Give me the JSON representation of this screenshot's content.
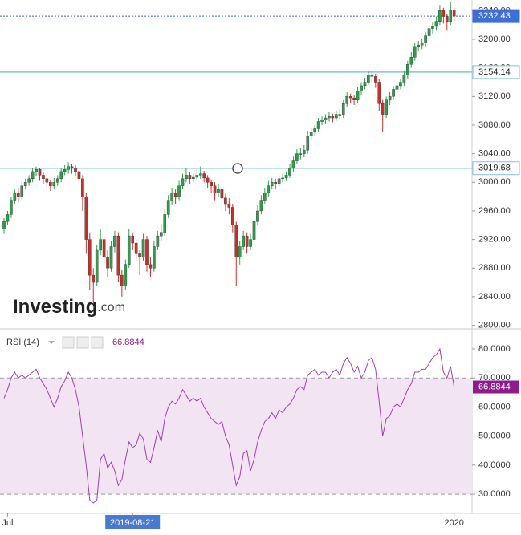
{
  "chart_data": {
    "type": "candlestick",
    "logo": "Investing",
    "logo_suffix": ".com",
    "ylim": [
      2795,
      3255
    ],
    "yticks": [
      {
        "value": 2800,
        "label": "2800.00"
      },
      {
        "value": 2840,
        "label": "2840.00"
      },
      {
        "value": 2880,
        "label": "2880.00"
      },
      {
        "value": 2920,
        "label": "2920.00"
      },
      {
        "value": 2960,
        "label": "2960.00"
      },
      {
        "value": 3000,
        "label": "3000.00"
      },
      {
        "value": 3040,
        "label": "3040.00"
      },
      {
        "value": 3080,
        "label": "3080.00"
      },
      {
        "value": 3120,
        "label": "3120.00"
      },
      {
        "value": 3160,
        "label": "3160.00"
      },
      {
        "value": 3200,
        "label": "3200.00"
      },
      {
        "value": 3240,
        "label": "3240.00"
      }
    ],
    "price_lines": [
      3232.43,
      3154.14,
      3019.68
    ],
    "up_color": "#2f9e4a",
    "down_color": "#c9302c",
    "x_labels": [
      {
        "index": 1,
        "label": "Jul"
      },
      {
        "index": 36,
        "label": "2019-08-21"
      },
      {
        "index": 126,
        "label": "2020"
      }
    ],
    "ohlc": [
      [
        2935,
        2950,
        2928,
        2945
      ],
      [
        2945,
        2960,
        2940,
        2955
      ],
      [
        2955,
        2980,
        2950,
        2975
      ],
      [
        2975,
        2990,
        2970,
        2985
      ],
      [
        2985,
        2992,
        2972,
        2980
      ],
      [
        2980,
        3000,
        2976,
        2995
      ],
      [
        2995,
        3005,
        2990,
        3000
      ],
      [
        3000,
        3010,
        2995,
        3005
      ],
      [
        3005,
        3020,
        3000,
        3015
      ],
      [
        3015,
        3022,
        3008,
        3018
      ],
      [
        3018,
        3020,
        3002,
        3010
      ],
      [
        3010,
        3014,
        2998,
        3005
      ],
      [
        3005,
        3010,
        2992,
        3000
      ],
      [
        3000,
        3004,
        2988,
        2995
      ],
      [
        2995,
        3006,
        2990,
        3000
      ],
      [
        3000,
        3010,
        2995,
        3005
      ],
      [
        3005,
        3020,
        3000,
        3015
      ],
      [
        3015,
        3024,
        3010,
        3018
      ],
      [
        3018,
        3028,
        3012,
        3022
      ],
      [
        3022,
        3026,
        3012,
        3020
      ],
      [
        3020,
        3024,
        3008,
        3015
      ],
      [
        3015,
        3018,
        2995,
        3005
      ],
      [
        3005,
        3010,
        2960,
        2980
      ],
      [
        2980,
        2985,
        2900,
        2920
      ],
      [
        2920,
        2930,
        2850,
        2870
      ],
      [
        2870,
        2880,
        2830,
        2860
      ],
      [
        2860,
        2912,
        2855,
        2905
      ],
      [
        2905,
        2935,
        2898,
        2920
      ],
      [
        2920,
        2925,
        2885,
        2895
      ],
      [
        2895,
        2905,
        2868,
        2880
      ],
      [
        2880,
        2918,
        2875,
        2910
      ],
      [
        2910,
        2932,
        2902,
        2925
      ],
      [
        2925,
        2930,
        2860,
        2870
      ],
      [
        2870,
        2878,
        2840,
        2855
      ],
      [
        2855,
        2892,
        2850,
        2885
      ],
      [
        2885,
        2935,
        2880,
        2925
      ],
      [
        2925,
        2930,
        2905,
        2915
      ],
      [
        2915,
        2920,
        2890,
        2900
      ],
      [
        2900,
        2905,
        2870,
        2895
      ],
      [
        2895,
        2928,
        2890,
        2920
      ],
      [
        2920,
        2925,
        2875,
        2885
      ],
      [
        2885,
        2895,
        2868,
        2880
      ],
      [
        2880,
        2918,
        2875,
        2910
      ],
      [
        2910,
        2932,
        2905,
        2925
      ],
      [
        2925,
        2940,
        2918,
        2930
      ],
      [
        2930,
        2962,
        2925,
        2955
      ],
      [
        2955,
        2982,
        2950,
        2975
      ],
      [
        2975,
        2992,
        2968,
        2985
      ],
      [
        2985,
        2990,
        2970,
        2980
      ],
      [
        2980,
        3002,
        2975,
        2995
      ],
      [
        2995,
        3012,
        2990,
        3005
      ],
      [
        3005,
        3020,
        3000,
        3010
      ],
      [
        3010,
        3015,
        2998,
        3005
      ],
      [
        3005,
        3012,
        3000,
        3007
      ],
      [
        3007,
        3018,
        3002,
        3010
      ],
      [
        3010,
        3022,
        3005,
        3012
      ],
      [
        3012,
        3016,
        3000,
        3006
      ],
      [
        3006,
        3010,
        2992,
        3000
      ],
      [
        3000,
        3004,
        2985,
        2995
      ],
      [
        2995,
        3000,
        2975,
        2985
      ],
      [
        2985,
        2998,
        2980,
        2990
      ],
      [
        2990,
        2994,
        2960,
        2978
      ],
      [
        2978,
        2984,
        2960,
        2970
      ],
      [
        2970,
        2978,
        2955,
        2965
      ],
      [
        2965,
        2970,
        2930,
        2940
      ],
      [
        2940,
        2945,
        2855,
        2895
      ],
      [
        2895,
        2918,
        2885,
        2910
      ],
      [
        2910,
        2932,
        2905,
        2925
      ],
      [
        2925,
        2930,
        2900,
        2910
      ],
      [
        2910,
        2928,
        2905,
        2920
      ],
      [
        2920,
        2952,
        2915,
        2945
      ],
      [
        2945,
        2968,
        2940,
        2960
      ],
      [
        2960,
        2982,
        2955,
        2975
      ],
      [
        2975,
        2992,
        2970,
        2985
      ],
      [
        2985,
        3002,
        2980,
        2995
      ],
      [
        2995,
        3006,
        2990,
        3000
      ],
      [
        3000,
        3005,
        2990,
        2998
      ],
      [
        2998,
        3010,
        2994,
        3005
      ],
      [
        3005,
        3012,
        3000,
        3006
      ],
      [
        3006,
        3015,
        3002,
        3010
      ],
      [
        3010,
        3025,
        3006,
        3020
      ],
      [
        3020,
        3036,
        3015,
        3030
      ],
      [
        3030,
        3046,
        3025,
        3040
      ],
      [
        3040,
        3048,
        3032,
        3040
      ],
      [
        3040,
        3052,
        3035,
        3045
      ],
      [
        3045,
        3072,
        3040,
        3065
      ],
      [
        3065,
        3076,
        3060,
        3070
      ],
      [
        3070,
        3080,
        3065,
        3075
      ],
      [
        3075,
        3090,
        3070,
        3085
      ],
      [
        3085,
        3092,
        3080,
        3087
      ],
      [
        3087,
        3095,
        3082,
        3090
      ],
      [
        3090,
        3098,
        3085,
        3092
      ],
      [
        3092,
        3096,
        3084,
        3090
      ],
      [
        3090,
        3100,
        3086,
        3095
      ],
      [
        3095,
        3102,
        3088,
        3095
      ],
      [
        3095,
        3115,
        3090,
        3110
      ],
      [
        3110,
        3126,
        3105,
        3120
      ],
      [
        3120,
        3124,
        3110,
        3118
      ],
      [
        3118,
        3122,
        3108,
        3115
      ],
      [
        3115,
        3134,
        3110,
        3128
      ],
      [
        3128,
        3140,
        3122,
        3135
      ],
      [
        3135,
        3146,
        3130,
        3140
      ],
      [
        3140,
        3156,
        3136,
        3150
      ],
      [
        3150,
        3155,
        3140,
        3148
      ],
      [
        3148,
        3152,
        3132,
        3140
      ],
      [
        3140,
        3145,
        3100,
        3110
      ],
      [
        3110,
        3115,
        3070,
        3095
      ],
      [
        3095,
        3120,
        3090,
        3115
      ],
      [
        3115,
        3126,
        3108,
        3120
      ],
      [
        3120,
        3135,
        3115,
        3130
      ],
      [
        3130,
        3140,
        3125,
        3135
      ],
      [
        3135,
        3145,
        3130,
        3140
      ],
      [
        3140,
        3156,
        3135,
        3150
      ],
      [
        3150,
        3170,
        3145,
        3165
      ],
      [
        3165,
        3182,
        3160,
        3175
      ],
      [
        3175,
        3195,
        3170,
        3190
      ],
      [
        3190,
        3198,
        3184,
        3192
      ],
      [
        3192,
        3200,
        3186,
        3195
      ],
      [
        3195,
        3210,
        3190,
        3205
      ],
      [
        3205,
        3220,
        3200,
        3215
      ],
      [
        3215,
        3224,
        3208,
        3218
      ],
      [
        3218,
        3232,
        3212,
        3225
      ],
      [
        3225,
        3248,
        3220,
        3240
      ],
      [
        3240,
        3244,
        3222,
        3232
      ],
      [
        3232,
        3236,
        3212,
        3225
      ],
      [
        3225,
        3252,
        3220,
        3240
      ],
      [
        3240,
        3244,
        3225,
        3232.43
      ]
    ],
    "rsi": {
      "name": "RSI (14)",
      "color": "#a040b0",
      "ylim": [
        23.4,
        86.9
      ],
      "yticks": [
        {
          "value": 30,
          "label": "30.0000"
        },
        {
          "value": 40,
          "label": "40.0000"
        },
        {
          "value": 50,
          "label": "50.0000"
        },
        {
          "value": 60,
          "label": "60.0000"
        },
        {
          "value": 70,
          "label": "70.0000"
        },
        {
          "value": 80,
          "label": "80.0000"
        }
      ],
      "band": [
        30,
        70
      ],
      "values": [
        63,
        66,
        70,
        72,
        70,
        71,
        70,
        71,
        72,
        73,
        70,
        68,
        66,
        63,
        60,
        63,
        67,
        69,
        72,
        70,
        66,
        60,
        50,
        40,
        28,
        27,
        28,
        42,
        44,
        39,
        41,
        38,
        33,
        35,
        42,
        48,
        46,
        47,
        51,
        49,
        42,
        41,
        46,
        52,
        48,
        56,
        60,
        62,
        61,
        63,
        66,
        64,
        62,
        63,
        62,
        63,
        60,
        58,
        56,
        55,
        54,
        55,
        50,
        47,
        40,
        33,
        36,
        44,
        45,
        38,
        42,
        48,
        52,
        55,
        56,
        58,
        56,
        59,
        58,
        60,
        61,
        63,
        66,
        67,
        66,
        71,
        72,
        73,
        71,
        72,
        72,
        70,
        72,
        73,
        71,
        75,
        77,
        75,
        72,
        74,
        70,
        72,
        76,
        77,
        73,
        62,
        50,
        56,
        57,
        60,
        61,
        60,
        63,
        66,
        68,
        72,
        72,
        73,
        73,
        75,
        77,
        78,
        80,
        72,
        70,
        74,
        66.8844
      ]
    }
  }
}
